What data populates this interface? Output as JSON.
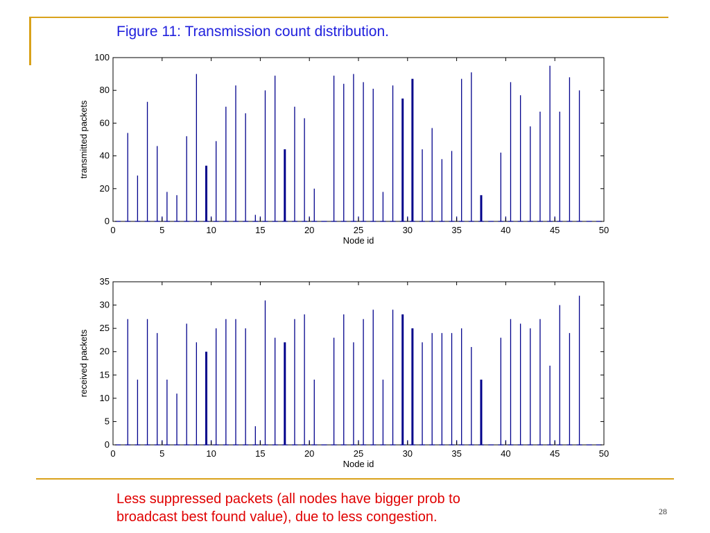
{
  "slide": {
    "title": "Figure 11: Transmission count distribution.",
    "caption_lines": [
      "Less suppressed packets (all nodes have bigger prob to",
      "broadcast best found value), due to less congestion."
    ],
    "page_number": "28",
    "accent_color": "#d9a21b",
    "title_color": "#2020dd",
    "caption_color": "#e00000"
  },
  "chart_data": [
    {
      "type": "bar",
      "title": "",
      "xlabel": "Node id",
      "ylabel": "transmitted packets",
      "xlim": [
        0,
        50
      ],
      "ylim": [
        0,
        100
      ],
      "xticks": [
        0,
        5,
        10,
        15,
        20,
        25,
        30,
        35,
        40,
        45,
        50
      ],
      "yticks": [
        0,
        20,
        40,
        60,
        80,
        100
      ],
      "bar_color": "#00008b",
      "x": [
        1.5,
        2.5,
        3.5,
        4.5,
        5,
        5.5,
        6.5,
        7.5,
        8.5,
        9.5,
        10,
        10.5,
        11.5,
        12.5,
        13.5,
        14.5,
        15,
        15.5,
        16.5,
        17.5,
        18.5,
        19.5,
        20,
        20.5,
        22.5,
        23.5,
        24.5,
        25,
        25.5,
        26.5,
        27.5,
        28.5,
        29.5,
        30,
        30.5,
        31.5,
        32.5,
        33.5,
        34.5,
        35,
        35.5,
        36.5,
        37.5,
        39.5,
        40,
        40.5,
        41.5,
        42.5,
        43.5,
        44.5,
        45,
        45.5,
        46.5,
        47.5
      ],
      "values": [
        54,
        28,
        73,
        46,
        3,
        18,
        16,
        52,
        90,
        34,
        3,
        49,
        70,
        83,
        66,
        4,
        3,
        80,
        89,
        44,
        70,
        63,
        3,
        20,
        89,
        84,
        90,
        3,
        85,
        81,
        18,
        83,
        75,
        3,
        87,
        44,
        57,
        38,
        43,
        3,
        87,
        91,
        16,
        42,
        3,
        85,
        77,
        58,
        67,
        95,
        3,
        67,
        88,
        80
      ],
      "bold_x": [
        9.5,
        17.5,
        29.5,
        30.5,
        37.5
      ]
    },
    {
      "type": "bar",
      "title": "",
      "xlabel": "Node id",
      "ylabel": "received packets",
      "xlim": [
        0,
        50
      ],
      "ylim": [
        0,
        35
      ],
      "xticks": [
        0,
        5,
        10,
        15,
        20,
        25,
        30,
        35,
        40,
        45,
        50
      ],
      "yticks": [
        0,
        5,
        10,
        15,
        20,
        25,
        30,
        35
      ],
      "bar_color": "#00008b",
      "x": [
        1.5,
        2.5,
        3.5,
        4.5,
        5,
        5.5,
        6.5,
        7.5,
        8.5,
        9.5,
        10,
        10.5,
        11.5,
        12.5,
        13.5,
        14.5,
        15,
        15.5,
        16.5,
        17.5,
        18.5,
        19.5,
        20,
        20.5,
        22.5,
        23.5,
        24.5,
        25,
        25.5,
        26.5,
        27.5,
        28.5,
        29.5,
        30,
        30.5,
        31.5,
        32.5,
        33.5,
        34.5,
        35,
        35.5,
        36.5,
        37.5,
        39.5,
        40,
        40.5,
        41.5,
        42.5,
        43.5,
        44.5,
        45,
        45.5,
        46.5,
        47.5
      ],
      "values": [
        27,
        14,
        27,
        24,
        1,
        14,
        11,
        26,
        22,
        20,
        1,
        25,
        27,
        27,
        25,
        4,
        1,
        31,
        23,
        22,
        27,
        28,
        1,
        14,
        23,
        28,
        22,
        1,
        27,
        29,
        14,
        29,
        28,
        1,
        25,
        22,
        24,
        24,
        24,
        1,
        25,
        21,
        14,
        23,
        1,
        27,
        26,
        25,
        27,
        17,
        1,
        30,
        24,
        32
      ],
      "bold_x": [
        9.5,
        17.5,
        29.5,
        30.5,
        37.5
      ]
    }
  ]
}
